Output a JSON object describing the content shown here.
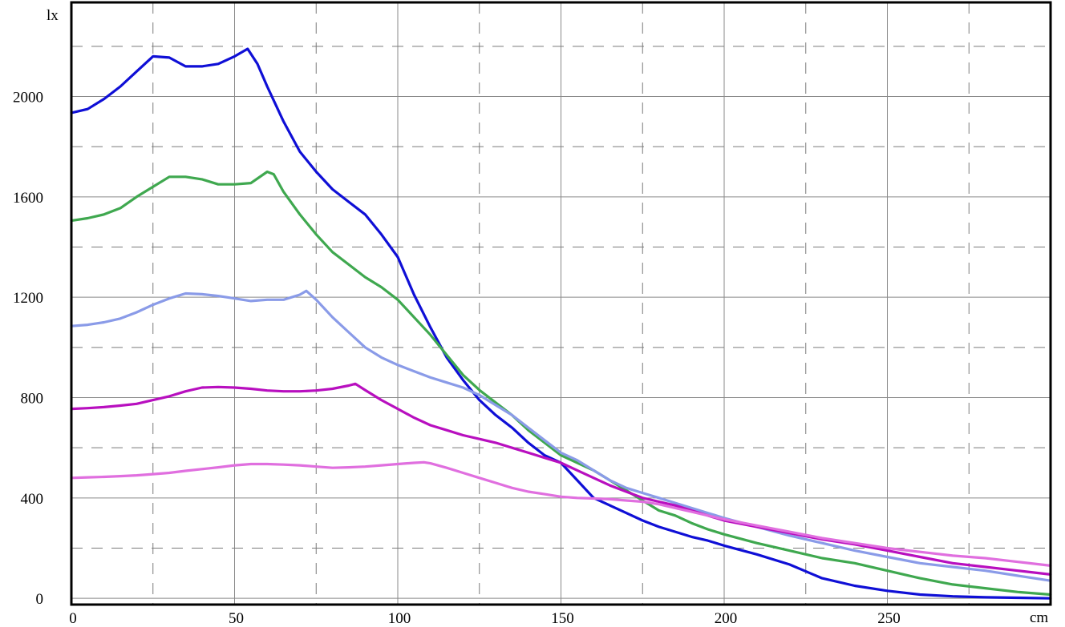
{
  "chart_data": {
    "type": "line",
    "xlabel": "cm",
    "ylabel": "lx",
    "xlim": [
      0,
      300
    ],
    "ylim": [
      -25,
      2375
    ],
    "x_ticks": [
      0,
      50,
      100,
      150,
      200,
      250
    ],
    "y_ticks": [
      0,
      400,
      800,
      1200,
      1600,
      2000
    ],
    "grid": true,
    "legend": "none",
    "series": [
      {
        "color": "#0f0fd6",
        "x": [
          0,
          5,
          10,
          15,
          20,
          25,
          30,
          35,
          40,
          45,
          50,
          54,
          57,
          60,
          65,
          70,
          75,
          80,
          85,
          90,
          95,
          100,
          105,
          110,
          115,
          120,
          125,
          130,
          135,
          140,
          145,
          150,
          155,
          160,
          165,
          170,
          175,
          180,
          185,
          190,
          195,
          200,
          210,
          220,
          230,
          240,
          250,
          260,
          270,
          280,
          290,
          300
        ],
        "y": [
          1935,
          1950,
          1990,
          2040,
          2100,
          2160,
          2155,
          2120,
          2120,
          2130,
          2160,
          2190,
          2130,
          2040,
          1900,
          1780,
          1700,
          1630,
          1580,
          1530,
          1450,
          1360,
          1210,
          1080,
          960,
          870,
          790,
          730,
          680,
          620,
          570,
          540,
          470,
          400,
          370,
          340,
          310,
          285,
          265,
          245,
          230,
          210,
          175,
          135,
          80,
          50,
          30,
          15,
          8,
          4,
          2,
          0
        ]
      },
      {
        "color": "#3fa84f",
        "x": [
          0,
          5,
          10,
          15,
          20,
          25,
          30,
          35,
          40,
          45,
          50,
          55,
          60,
          62,
          65,
          70,
          75,
          80,
          85,
          90,
          95,
          100,
          105,
          110,
          115,
          120,
          125,
          130,
          135,
          140,
          145,
          150,
          155,
          160,
          165,
          170,
          175,
          180,
          185,
          190,
          195,
          200,
          210,
          220,
          230,
          240,
          250,
          260,
          270,
          280,
          290,
          300
        ],
        "y": [
          1505,
          1515,
          1530,
          1555,
          1600,
          1640,
          1680,
          1680,
          1670,
          1650,
          1650,
          1655,
          1700,
          1690,
          1620,
          1530,
          1450,
          1380,
          1330,
          1280,
          1240,
          1190,
          1120,
          1050,
          970,
          890,
          830,
          780,
          730,
          670,
          620,
          570,
          540,
          510,
          470,
          430,
          390,
          350,
          330,
          300,
          275,
          255,
          220,
          190,
          160,
          140,
          110,
          80,
          55,
          40,
          25,
          15
        ]
      },
      {
        "color": "#8a9be8",
        "x": [
          0,
          5,
          10,
          15,
          20,
          25,
          30,
          35,
          40,
          45,
          50,
          55,
          60,
          65,
          70,
          72,
          75,
          80,
          85,
          90,
          95,
          100,
          105,
          110,
          115,
          120,
          125,
          130,
          135,
          140,
          145,
          150,
          155,
          160,
          165,
          170,
          175,
          180,
          185,
          190,
          195,
          200,
          210,
          220,
          230,
          240,
          250,
          260,
          270,
          280,
          290,
          300
        ],
        "y": [
          1085,
          1090,
          1100,
          1115,
          1140,
          1170,
          1195,
          1215,
          1212,
          1205,
          1195,
          1185,
          1190,
          1190,
          1210,
          1225,
          1190,
          1120,
          1060,
          1000,
          960,
          930,
          905,
          880,
          860,
          840,
          810,
          770,
          730,
          680,
          630,
          580,
          550,
          510,
          470,
          440,
          420,
          400,
          380,
          360,
          340,
          320,
          285,
          250,
          220,
          190,
          165,
          140,
          125,
          110,
          90,
          70
        ]
      },
      {
        "color": "#b80fbf",
        "x": [
          0,
          5,
          10,
          15,
          20,
          25,
          30,
          35,
          40,
          45,
          50,
          55,
          60,
          65,
          70,
          75,
          80,
          85,
          87,
          90,
          95,
          100,
          105,
          110,
          115,
          120,
          125,
          130,
          135,
          140,
          145,
          150,
          155,
          160,
          165,
          170,
          175,
          180,
          185,
          190,
          195,
          200,
          210,
          220,
          230,
          240,
          250,
          260,
          270,
          280,
          290,
          300
        ],
        "y": [
          755,
          758,
          762,
          768,
          775,
          790,
          805,
          825,
          840,
          842,
          840,
          835,
          828,
          825,
          825,
          828,
          835,
          848,
          855,
          830,
          790,
          755,
          720,
          690,
          670,
          650,
          635,
          620,
          600,
          580,
          560,
          540,
          510,
          480,
          450,
          425,
          400,
          385,
          370,
          350,
          330,
          310,
          285,
          260,
          235,
          215,
          190,
          165,
          140,
          125,
          110,
          95
        ]
      },
      {
        "color": "#e06fdf",
        "x": [
          0,
          5,
          10,
          15,
          20,
          25,
          30,
          35,
          40,
          45,
          50,
          55,
          60,
          65,
          70,
          75,
          80,
          85,
          90,
          95,
          100,
          105,
          108,
          110,
          115,
          120,
          125,
          130,
          135,
          140,
          145,
          150,
          155,
          160,
          165,
          170,
          175,
          180,
          185,
          190,
          195,
          200,
          210,
          220,
          230,
          240,
          250,
          260,
          270,
          280,
          290,
          300
        ],
        "y": [
          480,
          482,
          484,
          487,
          490,
          495,
          500,
          508,
          515,
          522,
          530,
          535,
          535,
          533,
          530,
          525,
          520,
          522,
          525,
          530,
          535,
          540,
          542,
          538,
          520,
          500,
          480,
          460,
          440,
          425,
          415,
          405,
          400,
          398,
          395,
          390,
          385,
          375,
          360,
          345,
          330,
          315,
          290,
          265,
          240,
          220,
          200,
          185,
          170,
          160,
          145,
          130
        ]
      }
    ]
  }
}
